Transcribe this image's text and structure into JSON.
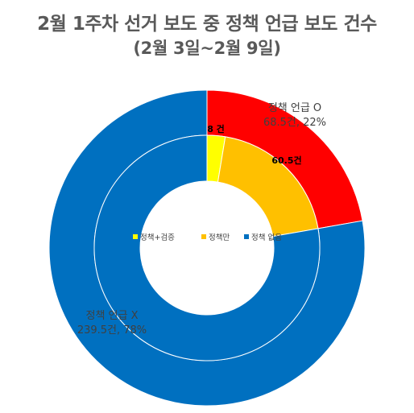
{
  "title": "2월 1주차 선거 보도 중 정책 언급 보도 건수",
  "subtitle": "(2월 3일~2월 9일)",
  "chart_data": [
    {
      "type": "pie",
      "variant": "donut-outer-ring",
      "categories": [
        "정책 언급 O",
        "정책 언급 X"
      ],
      "values": [
        68.5,
        239.5
      ],
      "percentages": [
        22,
        78
      ],
      "data_labels": [
        "정책 언급 O\n68.5건, 22%",
        "정책 언급 X\n239.5건, 78%"
      ],
      "colors": [
        "#ff0000",
        "#0070c0"
      ]
    },
    {
      "type": "pie",
      "variant": "donut-inner-ring",
      "categories": [
        "정책+검증",
        "정책만",
        "정책 없음"
      ],
      "values": [
        8,
        60.5,
        239.5
      ],
      "data_labels": [
        "8 건",
        "60.5건",
        ""
      ],
      "colors": [
        "#ffff00",
        "#ffc000",
        "#0070c0"
      ]
    }
  ],
  "legend": {
    "placement": "center",
    "items": [
      {
        "label": "정책+검증",
        "color": "#ffff00"
      },
      {
        "label": "정책만",
        "color": "#ffc000"
      },
      {
        "label": "정책 없음",
        "color": "#0070c0"
      }
    ]
  }
}
